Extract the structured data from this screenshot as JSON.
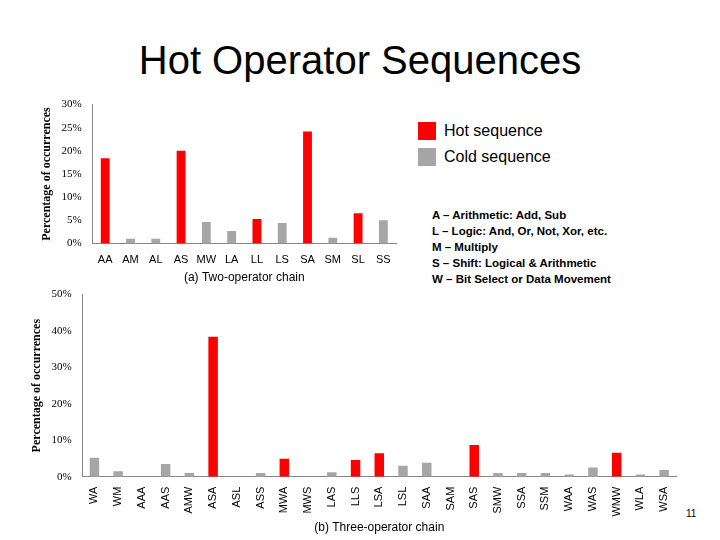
{
  "title": "Hot Operator Sequences",
  "key": [
    "A – Arithmetic: Add, Sub",
    "L – Logic: And, Or, Not, Xor, etc.",
    "M – Multiply",
    "S – Shift: Logical & Arithmetic",
    "W – Bit Select or Data Movement"
  ],
  "page_number": "11",
  "chart_data": [
    {
      "type": "bar",
      "x_label": "(a) Two-operator chain",
      "y_label": "Percentage of occurrences",
      "categories": [
        "AA",
        "AM",
        "AL",
        "AS",
        "MW",
        "LA",
        "LL",
        "LS",
        "SA",
        "SM",
        "SL",
        "SS"
      ],
      "series": [
        {
          "name": "Hot sequence",
          "color": "#ff0000",
          "values": [
            18.4,
            null,
            null,
            20,
            null,
            null,
            5.3,
            null,
            24.2,
            null,
            6.5,
            null
          ]
        },
        {
          "name": "Cold sequence",
          "color": "#a6a6a6",
          "values": [
            null,
            1,
            1,
            null,
            4.6,
            2.7,
            null,
            4.4,
            null,
            1.2,
            null,
            5
          ]
        }
      ],
      "ylim": [
        0,
        30
      ],
      "yticks": [
        {
          "value": 0,
          "label": "0%"
        },
        {
          "value": 5,
          "label": "5%"
        },
        {
          "value": 10,
          "label": "10%"
        },
        {
          "value": 15,
          "label": "15%"
        },
        {
          "value": 20,
          "label": "20%"
        },
        {
          "value": 25,
          "label": "25%"
        },
        {
          "value": 30,
          "label": "30%"
        }
      ],
      "grid": false,
      "legend": "right"
    },
    {
      "type": "bar",
      "x_label": "(b) Three-operator chain",
      "y_label": "Percentage of occurrences",
      "categories": [
        "WA",
        "WM",
        "AAA",
        "AAS",
        "AMW",
        "ASA",
        "ASL",
        "ASS",
        "MWA",
        "MWS",
        "LAS",
        "LLS",
        "LSA",
        "LSL",
        "SAA",
        "SAM",
        "SAS",
        "SMW",
        "SSA",
        "SSM",
        "WAA",
        "WAS",
        "WMW",
        "WLA",
        "WSA"
      ],
      "series": [
        {
          "color": "#ff0000",
          "values": [
            null,
            null,
            null,
            null,
            null,
            38.4,
            null,
            null,
            4.9,
            null,
            null,
            4.6,
            6.4,
            null,
            null,
            null,
            8.7,
            null,
            null,
            null,
            null,
            null,
            6.6,
            null,
            null
          ]
        },
        {
          "color": "#a6a6a6",
          "values": [
            5.2,
            1.5,
            0,
            3.5,
            1,
            null,
            0,
            1,
            null,
            0,
            1.2,
            null,
            null,
            3,
            3.8,
            0,
            null,
            1,
            1,
            1,
            0.6,
            2.5,
            null,
            0.6,
            1.8
          ]
        }
      ],
      "ylim": [
        0,
        50
      ],
      "yticks": [
        {
          "value": 0,
          "label": "0%"
        },
        {
          "value": 10,
          "label": "10%"
        },
        {
          "value": 20,
          "label": "20%"
        },
        {
          "value": 30,
          "label": "30%"
        },
        {
          "value": 40,
          "label": "40%"
        },
        {
          "value": 50,
          "label": "50%"
        }
      ],
      "grid": false
    }
  ]
}
